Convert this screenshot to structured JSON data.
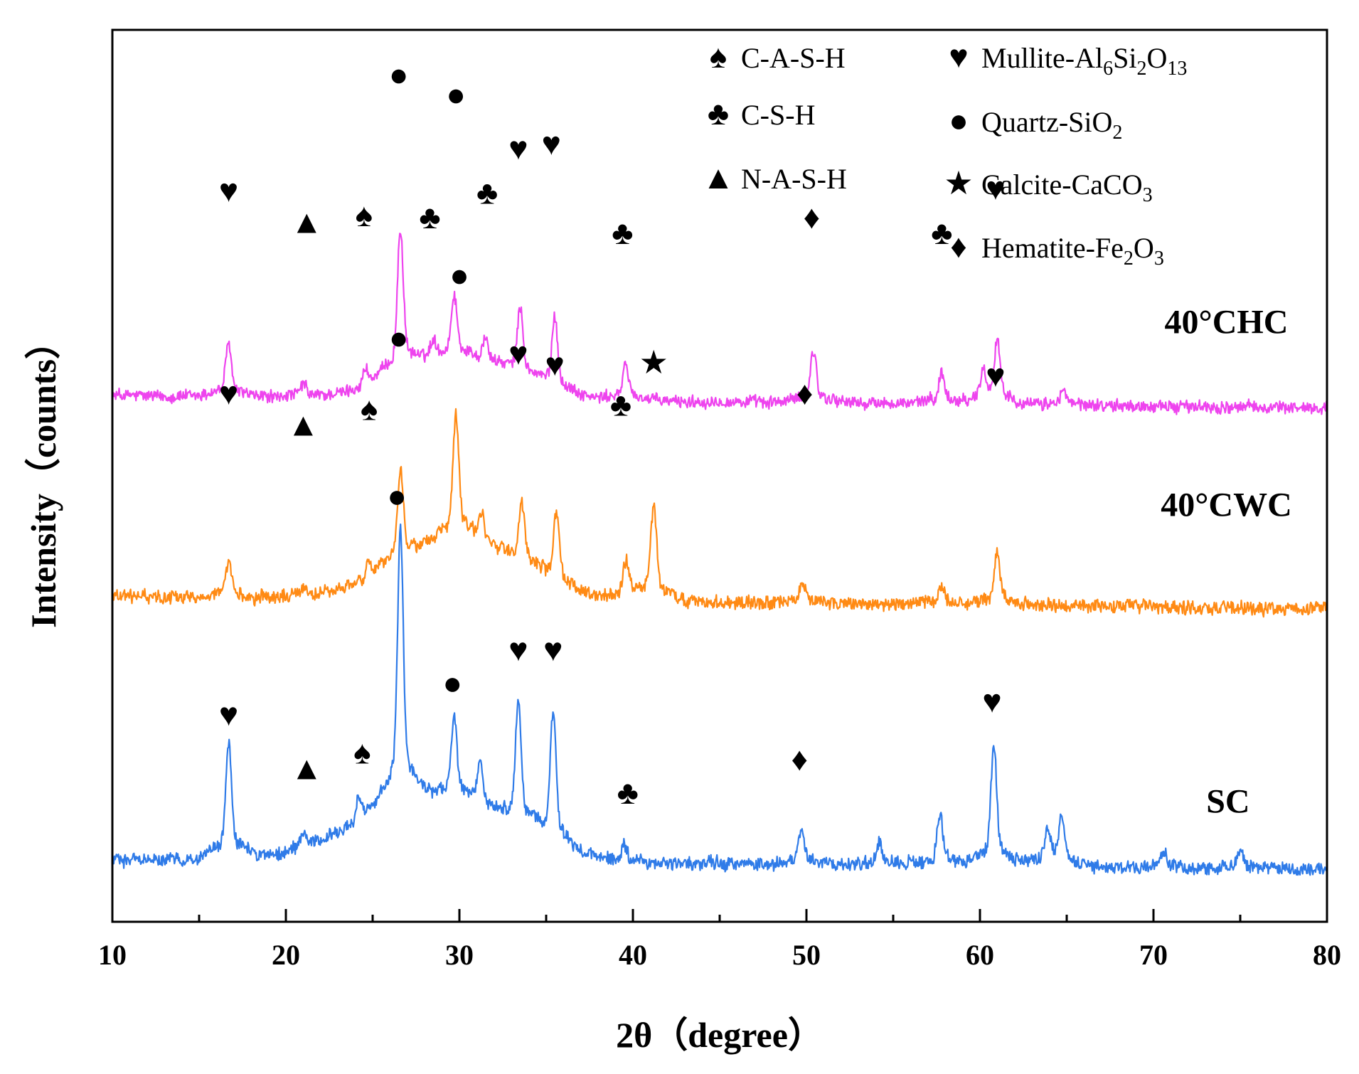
{
  "chart_data": {
    "type": "line",
    "title": "",
    "xlabel": "2θ（degree）",
    "ylabel": "Intensity（counts）",
    "xlim": [
      10,
      80
    ],
    "x_ticks": [
      10,
      20,
      30,
      40,
      50,
      60,
      70,
      80
    ],
    "y_ticks": [],
    "grid": false,
    "offset_stacked": true,
    "legend": {
      "placement": "top-right",
      "entries": [
        {
          "name": "C-A-S-H",
          "symbol": "spade"
        },
        {
          "name": "C-S-H",
          "symbol": "club"
        },
        {
          "name": "N-A-S-H",
          "symbol": "triangle"
        },
        {
          "name": "Mullite-Al6Si2O13",
          "symbol": "heart",
          "parts": [
            [
              "Mullite-Al",
              ""
            ],
            [
              "6",
              "sub"
            ],
            [
              "Si",
              ""
            ],
            [
              "2",
              "sub"
            ],
            [
              "O",
              ""
            ],
            [
              "13",
              "sub"
            ]
          ]
        },
        {
          "name": "Quartz-SiO2",
          "symbol": "circle",
          "parts": [
            [
              "Quartz-SiO",
              ""
            ],
            [
              "2",
              "sub"
            ]
          ]
        },
        {
          "name": "Calcite-CaCO3",
          "symbol": "star",
          "parts": [
            [
              "Calcite-CaCO",
              ""
            ],
            [
              "3",
              "sub"
            ]
          ]
        },
        {
          "name": "Hematite-Fe2O3",
          "symbol": "diamond",
          "parts": [
            [
              "Hematite-Fe",
              ""
            ],
            [
              "2",
              "sub"
            ],
            [
              "O",
              ""
            ],
            [
              "3",
              "sub"
            ]
          ]
        }
      ]
    },
    "symbol_glyphs": {
      "spade": "♠",
      "club": "♣",
      "triangle": "▲",
      "heart": "♥",
      "circle": "●",
      "star": "★",
      "diamond": "♦"
    },
    "series": [
      {
        "name": "40°CHC",
        "color": "#ee44ee",
        "baseline": 11.8,
        "baseline_slope": -0.004,
        "hump": {
          "center": 30.0,
          "width": 4.5,
          "height": 0.9
        },
        "noise": 0.16,
        "peaks": [
          {
            "x": 16.7,
            "h": 1.0
          },
          {
            "x": 21.0,
            "h": 0.25
          },
          {
            "x": 24.6,
            "h": 0.35
          },
          {
            "x": 26.6,
            "h": 2.8
          },
          {
            "x": 28.5,
            "h": 0.35
          },
          {
            "x": 29.7,
            "h": 1.2
          },
          {
            "x": 31.5,
            "h": 0.45
          },
          {
            "x": 33.5,
            "h": 1.3
          },
          {
            "x": 35.5,
            "h": 1.4
          },
          {
            "x": 39.6,
            "h": 0.7
          },
          {
            "x": 50.4,
            "h": 1.0
          },
          {
            "x": 57.8,
            "h": 0.6
          },
          {
            "x": 60.2,
            "h": 0.55
          },
          {
            "x": 61.0,
            "h": 1.2
          },
          {
            "x": 64.8,
            "h": 0.3
          }
        ],
        "markers": [
          {
            "x": 16.7,
            "y": 16.15,
            "symbol": "heart"
          },
          {
            "x": 21.2,
            "y": 15.45,
            "symbol": "triangle"
          },
          {
            "x": 24.5,
            "y": 15.6,
            "symbol": "spade"
          },
          {
            "x": 26.5,
            "y": 18.75,
            "symbol": "circle"
          },
          {
            "x": 28.3,
            "y": 15.55,
            "symbol": "club"
          },
          {
            "x": 29.8,
            "y": 18.3,
            "symbol": "circle"
          },
          {
            "x": 31.6,
            "y": 16.1,
            "symbol": "club"
          },
          {
            "x": 33.4,
            "y": 17.1,
            "symbol": "heart"
          },
          {
            "x": 35.3,
            "y": 17.2,
            "symbol": "heart"
          },
          {
            "x": 39.4,
            "y": 15.2,
            "symbol": "club"
          },
          {
            "x": 50.3,
            "y": 15.55,
            "symbol": "diamond"
          },
          {
            "x": 57.8,
            "y": 15.2,
            "symbol": "club"
          },
          {
            "x": 60.9,
            "y": 16.2,
            "symbol": "heart"
          }
        ]
      },
      {
        "name": "40°CWC",
        "color": "#ff8a14",
        "baseline": 7.3,
        "baseline_slope": -0.004,
        "hump": {
          "center": 30.0,
          "width": 5.0,
          "height": 1.3
        },
        "noise": 0.17,
        "peaks": [
          {
            "x": 16.7,
            "h": 0.6
          },
          {
            "x": 21.0,
            "h": 0.2
          },
          {
            "x": 24.8,
            "h": 0.3
          },
          {
            "x": 26.6,
            "h": 1.8
          },
          {
            "x": 29.8,
            "h": 2.4
          },
          {
            "x": 31.3,
            "h": 0.5
          },
          {
            "x": 33.6,
            "h": 1.2
          },
          {
            "x": 35.6,
            "h": 1.3
          },
          {
            "x": 39.6,
            "h": 0.7
          },
          {
            "x": 41.2,
            "h": 1.8
          },
          {
            "x": 49.8,
            "h": 0.4
          },
          {
            "x": 57.8,
            "h": 0.35
          },
          {
            "x": 61.0,
            "h": 1.0
          }
        ],
        "markers": [
          {
            "x": 16.7,
            "y": 11.6,
            "symbol": "heart"
          },
          {
            "x": 21.0,
            "y": 10.9,
            "symbol": "triangle"
          },
          {
            "x": 24.8,
            "y": 11.25,
            "symbol": "spade"
          },
          {
            "x": 26.5,
            "y": 12.85,
            "symbol": "circle"
          },
          {
            "x": 30.0,
            "y": 14.25,
            "symbol": "circle"
          },
          {
            "x": 33.4,
            "y": 12.5,
            "symbol": "heart"
          },
          {
            "x": 35.5,
            "y": 12.25,
            "symbol": "heart"
          },
          {
            "x": 39.3,
            "y": 11.35,
            "symbol": "club"
          },
          {
            "x": 41.2,
            "y": 12.3,
            "symbol": "star"
          },
          {
            "x": 49.9,
            "y": 11.6,
            "symbol": "diamond"
          },
          {
            "x": 60.9,
            "y": 12.0,
            "symbol": "heart"
          }
        ]
      },
      {
        "name": "SC",
        "color": "#2f7be8",
        "baseline": 1.4,
        "baseline_slope": -0.003,
        "hump": {
          "center": 28.5,
          "width": 6.0,
          "height": 1.4
        },
        "noise": 0.17,
        "peaks": [
          {
            "x": 16.7,
            "h": 2.2
          },
          {
            "x": 21.0,
            "h": 0.3
          },
          {
            "x": 24.2,
            "h": 0.45
          },
          {
            "x": 26.6,
            "h": 5.2
          },
          {
            "x": 29.7,
            "h": 1.6
          },
          {
            "x": 31.2,
            "h": 0.9
          },
          {
            "x": 33.4,
            "h": 2.4
          },
          {
            "x": 35.4,
            "h": 2.5
          },
          {
            "x": 39.5,
            "h": 0.3
          },
          {
            "x": 49.7,
            "h": 0.6
          },
          {
            "x": 54.2,
            "h": 0.45
          },
          {
            "x": 57.7,
            "h": 1.0
          },
          {
            "x": 60.8,
            "h": 2.3
          },
          {
            "x": 63.9,
            "h": 0.6
          },
          {
            "x": 64.7,
            "h": 0.9
          },
          {
            "x": 70.6,
            "h": 0.3
          },
          {
            "x": 75.0,
            "h": 0.3
          }
        ],
        "markers": [
          {
            "x": 16.7,
            "y": 4.4,
            "symbol": "heart"
          },
          {
            "x": 21.2,
            "y": 3.2,
            "symbol": "triangle"
          },
          {
            "x": 24.4,
            "y": 3.55,
            "symbol": "spade"
          },
          {
            "x": 26.4,
            "y": 9.3,
            "symbol": "circle"
          },
          {
            "x": 29.6,
            "y": 5.1,
            "symbol": "circle"
          },
          {
            "x": 33.4,
            "y": 5.85,
            "symbol": "heart"
          },
          {
            "x": 35.4,
            "y": 5.85,
            "symbol": "heart"
          },
          {
            "x": 39.7,
            "y": 2.65,
            "symbol": "club"
          },
          {
            "x": 49.6,
            "y": 3.4,
            "symbol": "diamond"
          },
          {
            "x": 60.7,
            "y": 4.7,
            "symbol": "heart"
          }
        ]
      }
    ],
    "series_labels": [
      {
        "text": "40°CHC",
        "x": 74.2,
        "y": 13.2
      },
      {
        "text": "40°CWC",
        "x": 74.2,
        "y": 9.1
      },
      {
        "text": "SC",
        "x": 74.3,
        "y": 2.45
      }
    ],
    "ylim": [
      0,
      20
    ]
  }
}
